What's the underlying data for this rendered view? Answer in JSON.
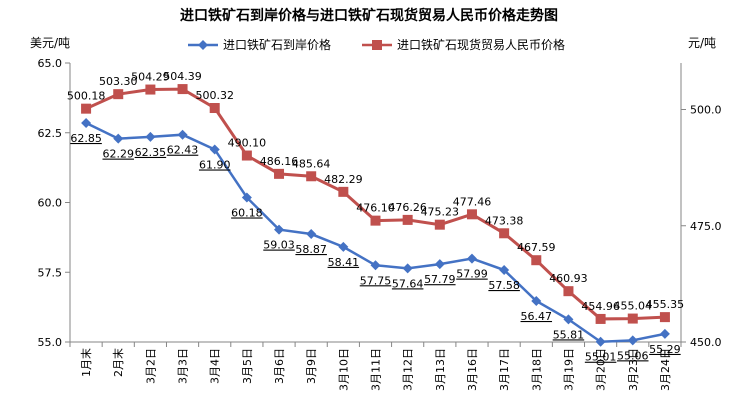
{
  "chart_data": {
    "type": "line",
    "title": "进口铁矿石到岸价格与进口铁矿石现货贸易人民币价格走势图",
    "left_unit": "美元/吨",
    "right_unit": "元/吨",
    "categories": [
      "1月末",
      "2月末",
      "3月2日",
      "3月3日",
      "3月4日",
      "3月5日",
      "3月6日",
      "3月9日",
      "3月10日",
      "3月11日",
      "3月12日",
      "3月13日",
      "3月16日",
      "3月17日",
      "3月18日",
      "3月19日",
      "3月20日",
      "3月23日",
      "3月24日"
    ],
    "left_axis": {
      "ylim": [
        55.0,
        65.0
      ],
      "ticks": [
        "55.0",
        "57.5",
        "60.0",
        "62.5",
        "65.0"
      ]
    },
    "right_axis": {
      "ylim": [
        450.0,
        510.0
      ],
      "ticks": [
        "450.0",
        "475.0",
        "500.0"
      ]
    },
    "grid": false,
    "legend_position": "top",
    "series": [
      {
        "name": "进口铁矿石到岸价格",
        "axis": "left",
        "color": "#4472C4",
        "marker": "diamond",
        "values": [
          62.85,
          62.29,
          62.35,
          62.43,
          61.9,
          60.18,
          59.03,
          58.87,
          58.41,
          57.75,
          57.64,
          57.79,
          57.99,
          57.58,
          56.47,
          55.81,
          55.01,
          55.06,
          55.29
        ],
        "labels": [
          "62.85",
          "62.29",
          "62.35",
          "62.43",
          "61.90",
          "60.18",
          "59.03",
          "58.87",
          "58.41",
          "57.75",
          "57.64",
          "57.79",
          "57.99",
          "57.58",
          "56.47",
          "55.81",
          "55.01",
          "55.06",
          "55.29"
        ]
      },
      {
        "name": "进口铁矿石现货贸易人民币价格",
        "axis": "right",
        "color": "#C0504D",
        "marker": "square",
        "values": [
          500.18,
          503.3,
          504.29,
          504.39,
          500.32,
          490.1,
          486.16,
          485.64,
          482.29,
          476.1,
          476.26,
          475.23,
          477.46,
          473.38,
          467.59,
          460.93,
          454.96,
          455.04,
          455.35
        ],
        "labels": [
          "500.18",
          "503.30",
          "504.29",
          "504.39",
          "500.32",
          "490.10",
          "486.16",
          "485.64",
          "482.29",
          "476.10",
          "476.26",
          "475.23",
          "477.46",
          "473.38",
          "467.59",
          "460.93",
          "454.96",
          "455.04",
          "455.35"
        ]
      }
    ]
  }
}
